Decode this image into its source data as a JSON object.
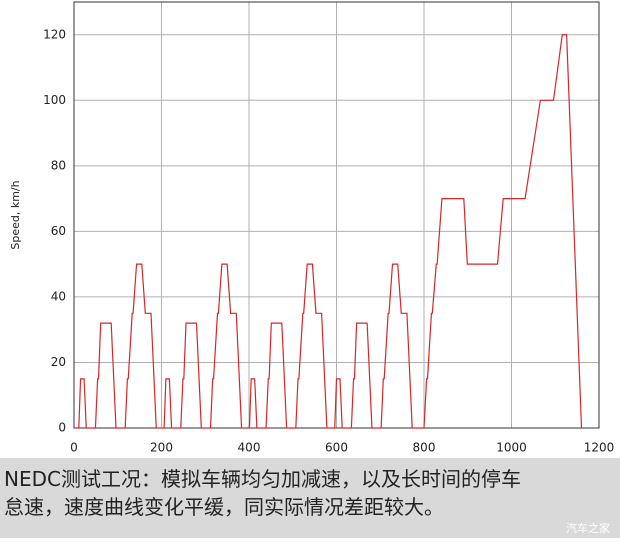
{
  "chart_data": {
    "type": "line",
    "ylabel": "Speed, km/h",
    "x": [
      0,
      11,
      15,
      23,
      28,
      49,
      54,
      56,
      61,
      85,
      96,
      117,
      122,
      124,
      133,
      135,
      143,
      155,
      163,
      176,
      188,
      195,
      206,
      210,
      218,
      223,
      244,
      249,
      251,
      256,
      280,
      291,
      312,
      317,
      319,
      328,
      330,
      338,
      350,
      358,
      371,
      383,
      390,
      401,
      405,
      413,
      418,
      439,
      444,
      446,
      451,
      475,
      486,
      507,
      512,
      514,
      523,
      525,
      533,
      545,
      553,
      566,
      578,
      585,
      596,
      600,
      608,
      613,
      634,
      639,
      641,
      646,
      670,
      681,
      702,
      707,
      709,
      718,
      720,
      728,
      740,
      748,
      761,
      773,
      800,
      806,
      808,
      817,
      819,
      828,
      830,
      841,
      891,
      899,
      968,
      981,
      1031,
      1066,
      1096,
      1116,
      1126,
      1160
    ],
    "values": [
      0,
      0,
      15,
      15,
      0,
      0,
      15,
      15,
      32,
      32,
      0,
      0,
      15,
      15,
      35,
      35,
      50,
      50,
      35,
      35,
      0,
      0,
      0,
      15,
      15,
      0,
      0,
      15,
      15,
      32,
      32,
      0,
      0,
      15,
      15,
      35,
      35,
      50,
      50,
      35,
      35,
      0,
      0,
      0,
      15,
      15,
      0,
      0,
      15,
      15,
      32,
      32,
      0,
      0,
      15,
      15,
      35,
      35,
      50,
      50,
      35,
      35,
      0,
      0,
      0,
      15,
      15,
      0,
      0,
      15,
      15,
      32,
      32,
      0,
      0,
      15,
      15,
      35,
      35,
      50,
      50,
      35,
      35,
      0,
      0,
      15,
      15,
      35,
      35,
      50,
      50,
      70,
      70,
      50,
      50,
      70,
      70,
      100,
      100,
      120,
      120,
      0
    ],
    "color": "#d62728",
    "xlim": [
      0,
      1200
    ],
    "xticks": [
      0,
      200,
      400,
      600,
      800,
      1000,
      1200
    ],
    "ylim": [
      0,
      130
    ],
    "yticks": [
      0,
      20,
      40,
      60,
      80,
      100,
      120
    ],
    "grid": true
  },
  "caption": [
    "NEDC测试工况：模拟车辆均匀加减速，以及长时间的停车",
    "怠速，速度曲线变化平缓，同实际情况差距较大。"
  ],
  "watermark": "汽车之家"
}
